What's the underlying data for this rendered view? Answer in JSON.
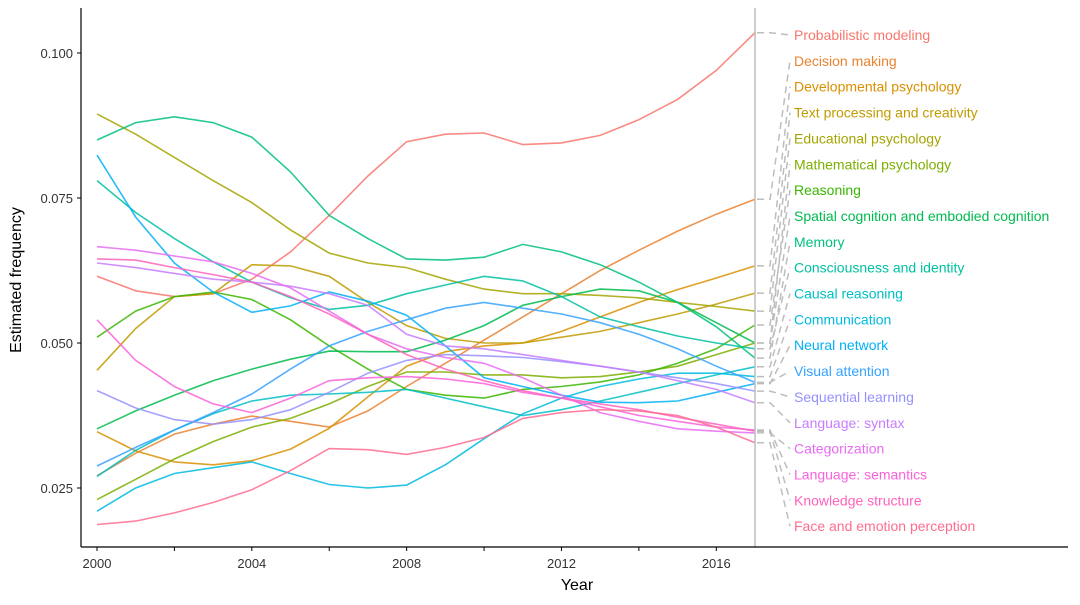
{
  "chart_data": {
    "type": "line",
    "title": "",
    "xlabel": "Year",
    "ylabel": "Estimated frequency",
    "xlim": [
      2000,
      2017
    ],
    "ylim": [
      0.017,
      0.105
    ],
    "x_ticks": [
      2000,
      2004,
      2008,
      2012,
      2016
    ],
    "y_ticks": [
      0.025,
      0.05,
      0.075,
      0.1
    ],
    "y_tick_labels": [
      "0.025",
      "0.050",
      "0.075",
      "0.100"
    ],
    "grid": false,
    "legend": "direct labels on right",
    "marker_year": 2017,
    "x": [
      2000,
      2001,
      2002,
      2003,
      2004,
      2005,
      2006,
      2007,
      2008,
      2009,
      2010,
      2011,
      2012,
      2013,
      2014,
      2015,
      2016,
      2017
    ],
    "series": [
      {
        "name": "Probabilistic modeling",
        "color": "#F8766D",
        "values": [
          0.0615,
          0.059,
          0.058,
          0.0585,
          0.061,
          0.0657,
          0.072,
          0.0788,
          0.0847,
          0.086,
          0.0862,
          0.0842,
          0.0845,
          0.0858,
          0.0885,
          0.092,
          0.097,
          0.1035
        ]
      },
      {
        "name": "Decision making",
        "color": "#EA8331",
        "values": [
          0.0271,
          0.031,
          0.0343,
          0.036,
          0.0374,
          0.0365,
          0.0355,
          0.0383,
          0.0425,
          0.0465,
          0.0505,
          0.0545,
          0.0585,
          0.0625,
          0.066,
          0.0693,
          0.0722,
          0.0748
        ]
      },
      {
        "name": "Developmental psychology",
        "color": "#D89000",
        "values": [
          0.0347,
          0.0314,
          0.0295,
          0.029,
          0.0297,
          0.0317,
          0.0353,
          0.0407,
          0.046,
          0.0485,
          0.0495,
          0.05,
          0.052,
          0.0545,
          0.057,
          0.0592,
          0.0612,
          0.0633
        ]
      },
      {
        "name": "Text processing and creativity",
        "color": "#C09B00",
        "values": [
          0.0453,
          0.0525,
          0.058,
          0.0585,
          0.0635,
          0.0633,
          0.0615,
          0.057,
          0.053,
          0.0508,
          0.05,
          0.05,
          0.051,
          0.052,
          0.0535,
          0.055,
          0.0567,
          0.0586
        ]
      },
      {
        "name": "Educational psychology",
        "color": "#A3A500",
        "values": [
          0.0895,
          0.086,
          0.082,
          0.078,
          0.0742,
          0.0695,
          0.0655,
          0.0638,
          0.063,
          0.061,
          0.0593,
          0.0585,
          0.0585,
          0.0582,
          0.0578,
          0.057,
          0.0563,
          0.0555
        ]
      },
      {
        "name": "Mathematical psychology",
        "color": "#7CAE00",
        "values": [
          0.023,
          0.0265,
          0.03,
          0.033,
          0.0355,
          0.037,
          0.0395,
          0.0425,
          0.045,
          0.045,
          0.0445,
          0.0445,
          0.044,
          0.0442,
          0.045,
          0.046,
          0.048,
          0.05
        ]
      },
      {
        "name": "Reasoning",
        "color": "#39B600",
        "values": [
          0.051,
          0.0555,
          0.058,
          0.0588,
          0.0575,
          0.054,
          0.0495,
          0.0455,
          0.042,
          0.041,
          0.0405,
          0.042,
          0.0425,
          0.0433,
          0.0445,
          0.0465,
          0.049,
          0.0531
        ]
      },
      {
        "name": "Spatial cognition and embodied cognition",
        "color": "#00BB4E",
        "values": [
          0.0352,
          0.0383,
          0.041,
          0.0435,
          0.0455,
          0.0472,
          0.0486,
          0.0485,
          0.0485,
          0.0505,
          0.053,
          0.0565,
          0.058,
          0.0593,
          0.059,
          0.057,
          0.0535,
          0.05
        ]
      },
      {
        "name": "Memory",
        "color": "#00BF7D",
        "values": [
          0.085,
          0.088,
          0.089,
          0.088,
          0.0855,
          0.0795,
          0.072,
          0.068,
          0.0645,
          0.0643,
          0.0648,
          0.067,
          0.0657,
          0.0635,
          0.0605,
          0.057,
          0.0528,
          0.0474
        ]
      },
      {
        "name": "Consciousness and identity",
        "color": "#00C1A3",
        "values": [
          0.078,
          0.0725,
          0.068,
          0.064,
          0.0605,
          0.0578,
          0.0558,
          0.0565,
          0.0585,
          0.06,
          0.0615,
          0.0607,
          0.058,
          0.0545,
          0.0528,
          0.0512,
          0.05,
          0.049
        ]
      },
      {
        "name": "Causal reasoning",
        "color": "#00BFC4",
        "values": [
          0.027,
          0.0315,
          0.035,
          0.0378,
          0.04,
          0.041,
          0.0412,
          0.0415,
          0.042,
          0.0405,
          0.039,
          0.0375,
          0.0385,
          0.04,
          0.0415,
          0.043,
          0.0445,
          0.0459
        ]
      },
      {
        "name": "Communication",
        "color": "#00BAE0",
        "values": [
          0.021,
          0.025,
          0.0275,
          0.0285,
          0.0295,
          0.0275,
          0.0256,
          0.025,
          0.0255,
          0.029,
          0.0335,
          0.0378,
          0.0405,
          0.0425,
          0.0438,
          0.0448,
          0.0448,
          0.0442
        ]
      },
      {
        "name": "Neural network",
        "color": "#00B0F6",
        "values": [
          0.0824,
          0.0717,
          0.0638,
          0.0588,
          0.0553,
          0.0564,
          0.0588,
          0.0572,
          0.0548,
          0.0495,
          0.044,
          0.0425,
          0.041,
          0.0398,
          0.0397,
          0.04,
          0.0415,
          0.043
        ]
      },
      {
        "name": "Visual attention",
        "color": "#35A2FF",
        "values": [
          0.0288,
          0.032,
          0.035,
          0.038,
          0.0412,
          0.0455,
          0.0495,
          0.052,
          0.054,
          0.056,
          0.057,
          0.056,
          0.055,
          0.0535,
          0.0515,
          0.049,
          0.046,
          0.0432
        ]
      },
      {
        "name": "Sequential learning",
        "color": "#9590FF",
        "values": [
          0.0418,
          0.0388,
          0.0368,
          0.036,
          0.0368,
          0.0385,
          0.0415,
          0.0448,
          0.047,
          0.048,
          0.0478,
          0.0475,
          0.0468,
          0.046,
          0.045,
          0.044,
          0.043,
          0.0417
        ]
      },
      {
        "name": "Language: syntax",
        "color": "#C77CFF",
        "values": [
          0.0638,
          0.063,
          0.062,
          0.061,
          0.0605,
          0.0598,
          0.0585,
          0.0565,
          0.0515,
          0.0495,
          0.049,
          0.048,
          0.047,
          0.046,
          0.045,
          0.0435,
          0.042,
          0.0397
        ]
      },
      {
        "name": "Categorization",
        "color": "#E76BF3",
        "values": [
          0.0666,
          0.066,
          0.065,
          0.064,
          0.062,
          0.0595,
          0.0555,
          0.0515,
          0.049,
          0.0475,
          0.0465,
          0.044,
          0.041,
          0.038,
          0.0365,
          0.0352,
          0.0348,
          0.0345
        ]
      },
      {
        "name": "Language: semantics",
        "color": "#FA62DB",
        "values": [
          0.054,
          0.047,
          0.0425,
          0.0395,
          0.038,
          0.0405,
          0.0435,
          0.044,
          0.0442,
          0.0438,
          0.043,
          0.0415,
          0.0405,
          0.039,
          0.0375,
          0.0365,
          0.0355,
          0.035
        ]
      },
      {
        "name": "Knowledge structure",
        "color": "#FF62BC",
        "values": [
          0.0645,
          0.0643,
          0.063,
          0.0618,
          0.0605,
          0.058,
          0.055,
          0.0515,
          0.048,
          0.0455,
          0.0435,
          0.0418,
          0.0405,
          0.0395,
          0.0385,
          0.0372,
          0.036,
          0.0348
        ]
      },
      {
        "name": "Face and emotion perception",
        "color": "#FF6C91",
        "values": [
          0.0187,
          0.0193,
          0.0207,
          0.0225,
          0.0247,
          0.028,
          0.0318,
          0.0316,
          0.0308,
          0.032,
          0.0337,
          0.037,
          0.038,
          0.0385,
          0.0383,
          0.0375,
          0.0355,
          0.0328
        ]
      }
    ]
  }
}
